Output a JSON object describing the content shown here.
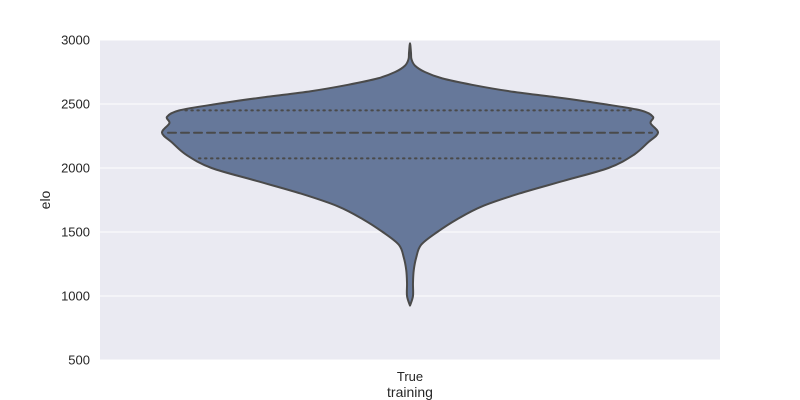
{
  "chart_data": {
    "type": "violin",
    "xlabel": "training",
    "ylabel": "elo",
    "categories": [
      "True"
    ],
    "ylim": [
      500,
      3000
    ],
    "yticks": [
      500,
      1000,
      1500,
      2000,
      2500,
      3000
    ],
    "grid": true,
    "violin": {
      "category": "True",
      "min": 925,
      "max": 2975,
      "median": 2275,
      "q1": 2075,
      "q3": 2450,
      "density_profile": [
        {
          "elo": 925,
          "w": 0.0
        },
        {
          "elo": 1000,
          "w": 0.012
        },
        {
          "elo": 1100,
          "w": 0.012
        },
        {
          "elo": 1200,
          "w": 0.015
        },
        {
          "elo": 1300,
          "w": 0.025
        },
        {
          "elo": 1400,
          "w": 0.045
        },
        {
          "elo": 1500,
          "w": 0.11
        },
        {
          "elo": 1600,
          "w": 0.19
        },
        {
          "elo": 1700,
          "w": 0.29
        },
        {
          "elo": 1800,
          "w": 0.44
        },
        {
          "elo": 1900,
          "w": 0.62
        },
        {
          "elo": 2000,
          "w": 0.8
        },
        {
          "elo": 2100,
          "w": 0.9
        },
        {
          "elo": 2200,
          "w": 0.96
        },
        {
          "elo": 2275,
          "w": 1.0
        },
        {
          "elo": 2350,
          "w": 0.97
        },
        {
          "elo": 2400,
          "w": 0.98
        },
        {
          "elo": 2450,
          "w": 0.93
        },
        {
          "elo": 2500,
          "w": 0.78
        },
        {
          "elo": 2550,
          "w": 0.6
        },
        {
          "elo": 2600,
          "w": 0.4
        },
        {
          "elo": 2650,
          "w": 0.25
        },
        {
          "elo": 2700,
          "w": 0.13
        },
        {
          "elo": 2750,
          "w": 0.06
        },
        {
          "elo": 2800,
          "w": 0.02
        },
        {
          "elo": 2850,
          "w": 0.006
        },
        {
          "elo": 2900,
          "w": 0.004
        },
        {
          "elo": 2975,
          "w": 0.0
        }
      ]
    },
    "colors": {
      "background": "#eaeaf2",
      "grid": "#ffffff",
      "violin_fill": "#66789a",
      "violin_edge": "#4a4a4a",
      "text": "#262626"
    }
  }
}
